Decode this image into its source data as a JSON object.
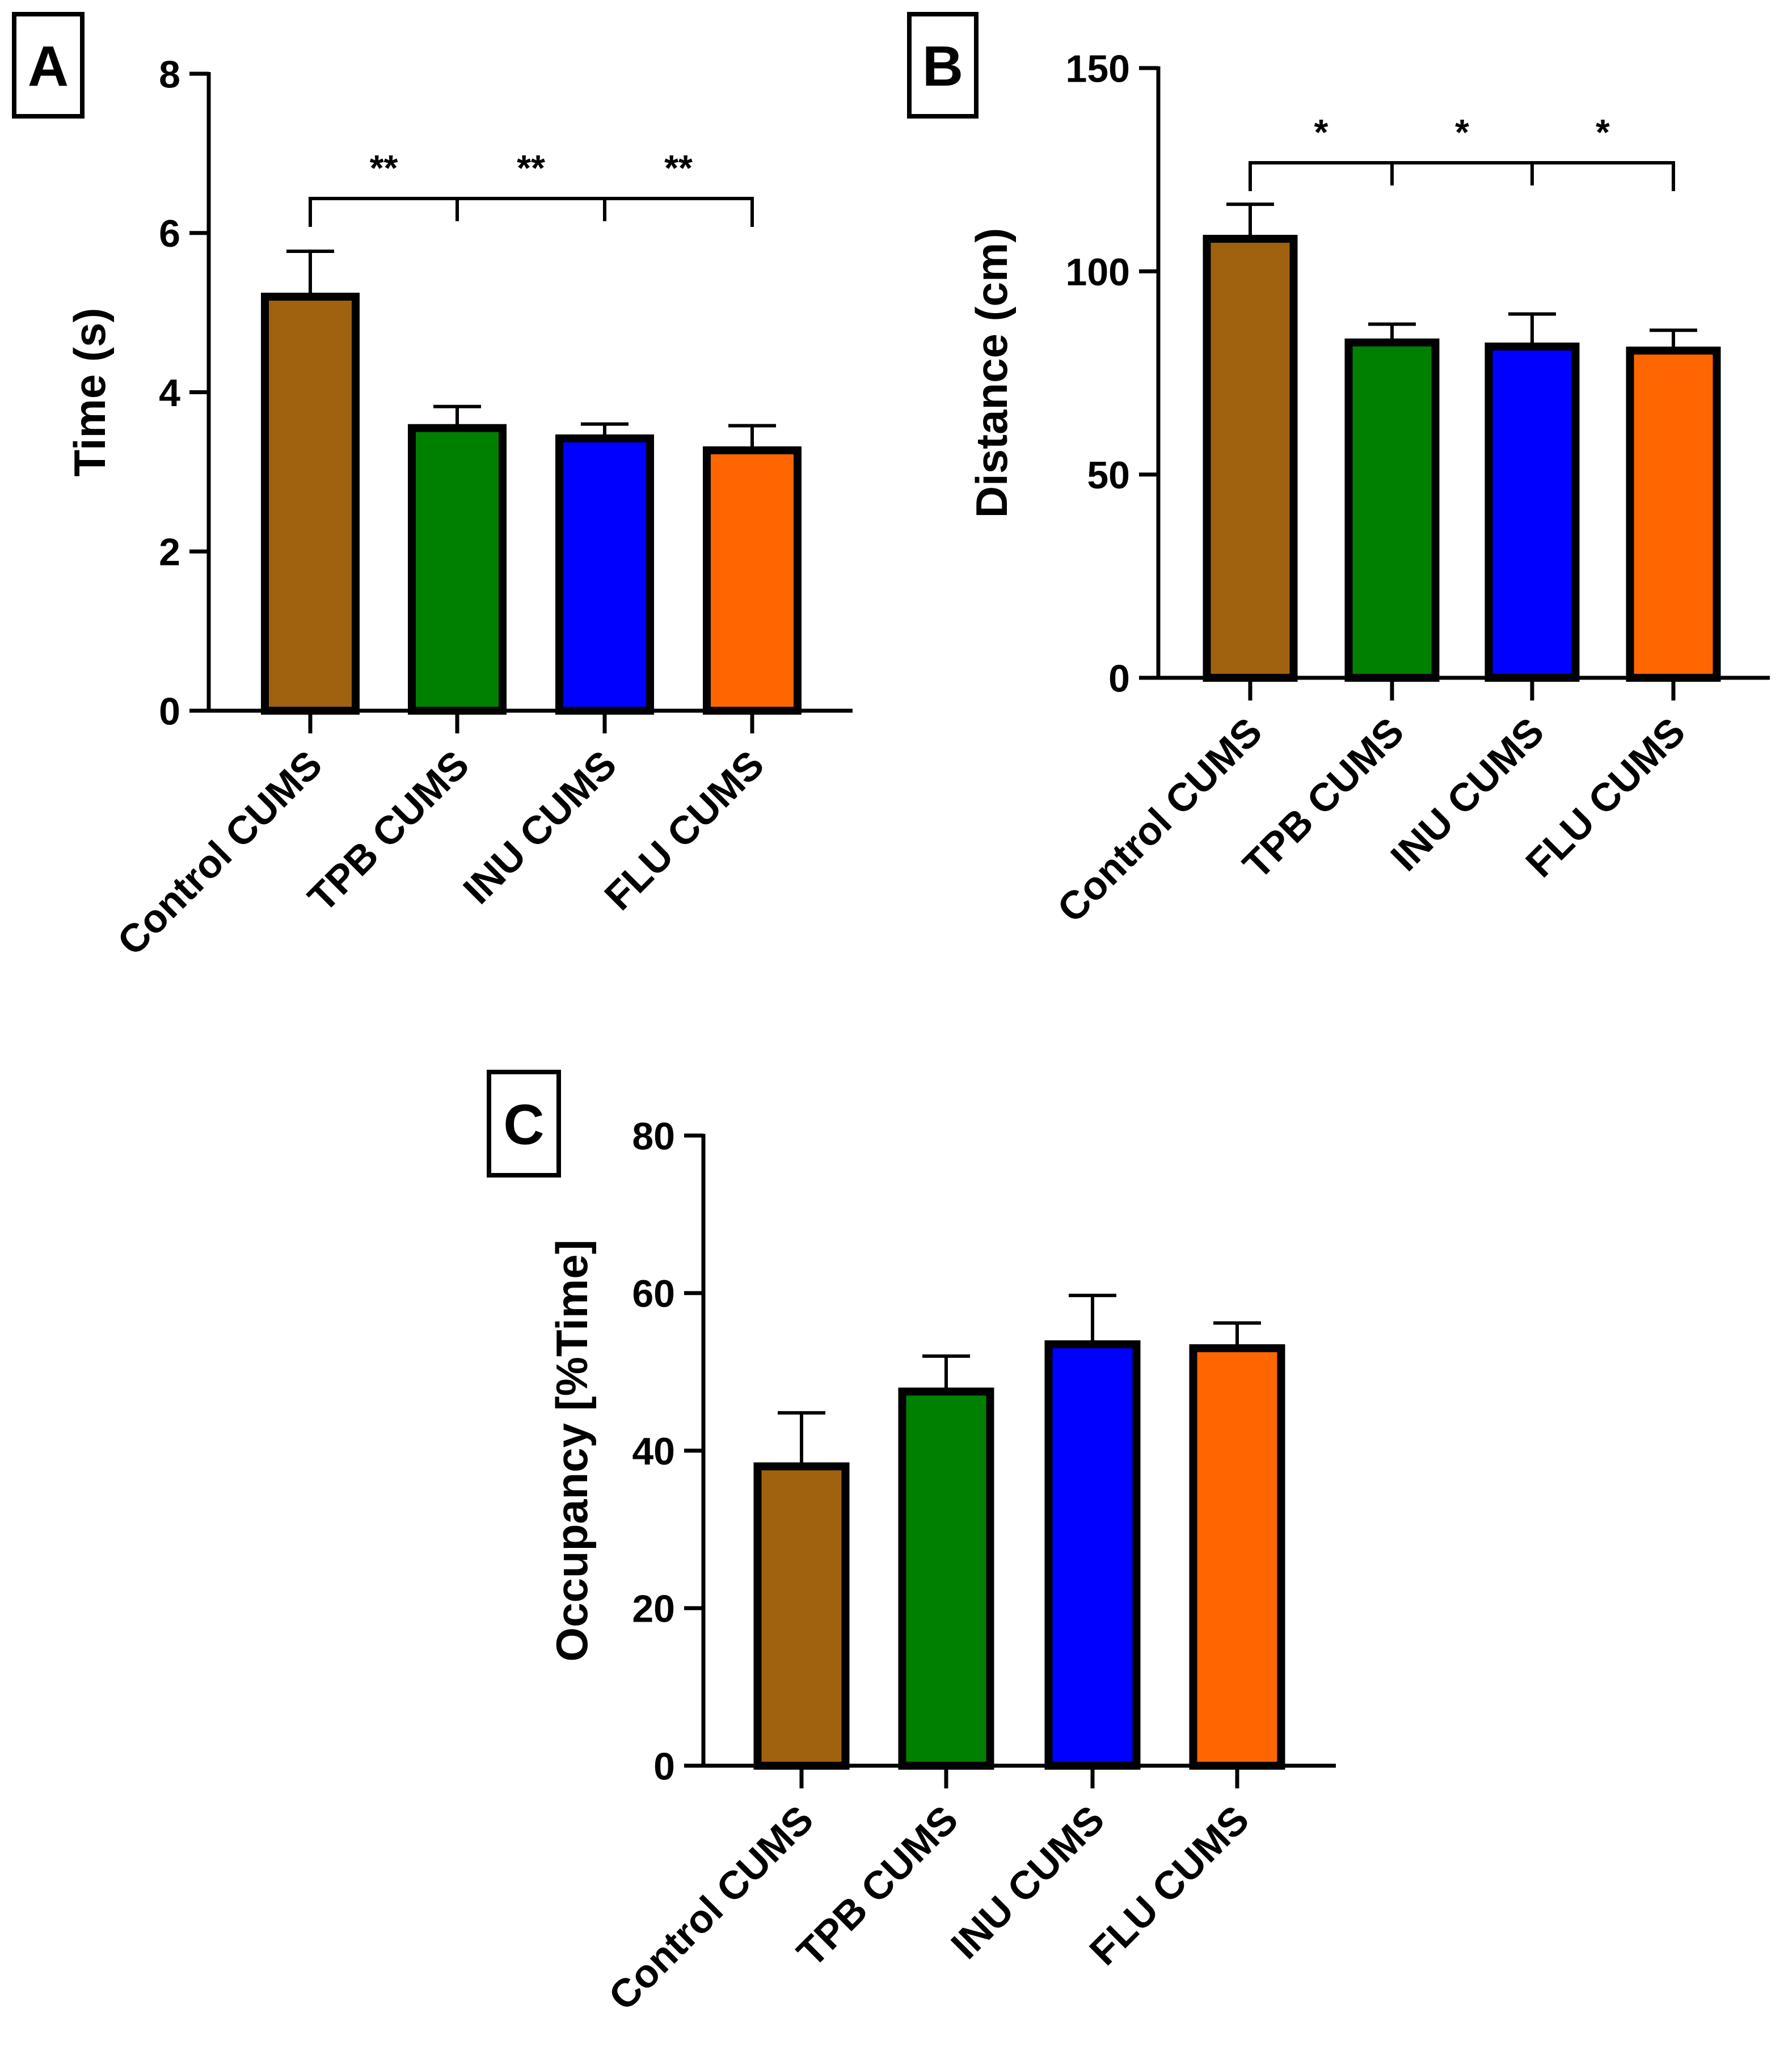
{
  "chart_data": [
    {
      "panel": "A",
      "type": "bar",
      "title": "",
      "xlabel": "",
      "ylabel": "Time (s)",
      "categories": [
        "Control CUMS",
        "TPB CUMS",
        "INU CUMS",
        "FLU CUMS"
      ],
      "values": [
        5.2,
        3.55,
        3.42,
        3.27
      ],
      "errors": [
        0.57,
        0.27,
        0.18,
        0.31
      ],
      "colors": [
        "#a0620f",
        "#008000",
        "#0000ff",
        "#ff6600"
      ],
      "ylim": [
        0,
        8
      ],
      "yticks": [
        "0",
        "2",
        "4",
        "6",
        "8"
      ],
      "grid": false,
      "significance": {
        "label": "**",
        "from": 0,
        "to": 3
      }
    },
    {
      "panel": "B",
      "type": "bar",
      "title": "",
      "xlabel": "",
      "ylabel": "Distance (cm)",
      "categories": [
        "Control CUMS",
        "TPB CUMS",
        "INU CUMS",
        "FLU CUMS"
      ],
      "values": [
        108,
        82.5,
        81.5,
        80.5
      ],
      "errors": [
        8.5,
        4.5,
        8,
        5
      ],
      "colors": [
        "#a0620f",
        "#008000",
        "#0000ff",
        "#ff6600"
      ],
      "ylim": [
        0,
        150
      ],
      "yticks": [
        "0",
        "50",
        "100",
        "150"
      ],
      "grid": false,
      "significance": {
        "label": "*",
        "from": 0,
        "to": 3
      }
    },
    {
      "panel": "C",
      "type": "bar",
      "title": "",
      "xlabel": "",
      "ylabel": "Occupancy [%Time]",
      "categories": [
        "Control CUMS",
        "TPB CUMS",
        "INU CUMS",
        "FLU CUMS"
      ],
      "values": [
        38,
        47.5,
        53.5,
        53
      ],
      "errors": [
        6.8,
        4.5,
        6.2,
        3.2
      ],
      "colors": [
        "#a0620f",
        "#008000",
        "#0000ff",
        "#ff6600"
      ],
      "ylim": [
        0,
        80
      ],
      "yticks": [
        "0",
        "20",
        "40",
        "60",
        "80"
      ],
      "grid": false
    }
  ]
}
